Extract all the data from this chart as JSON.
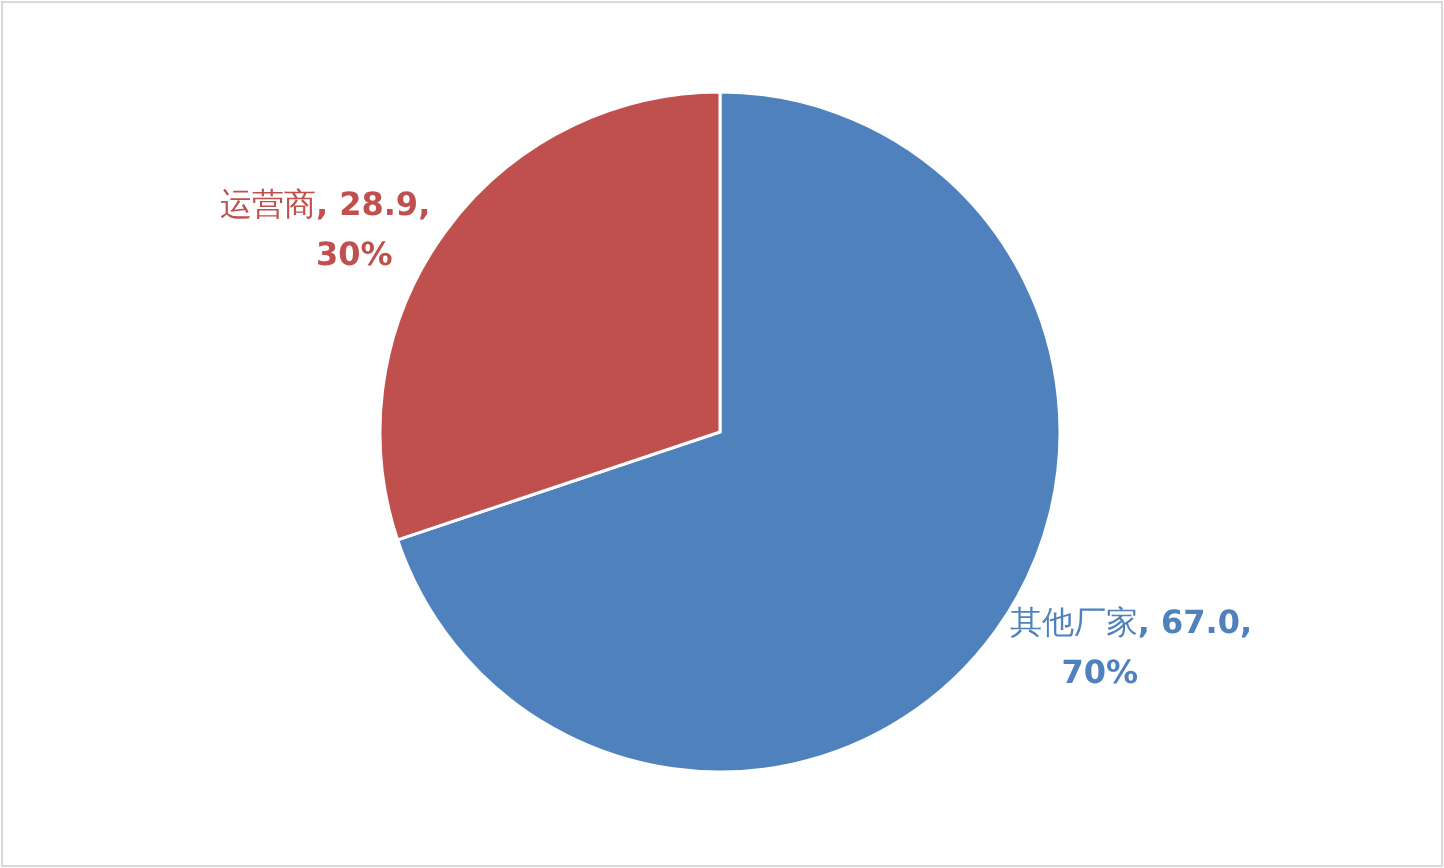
{
  "chart_data": {
    "type": "pie",
    "categories": [
      "其他厂家",
      "运营商"
    ],
    "values": [
      67.0,
      28.9
    ],
    "colors": [
      "#4f81bd",
      "#c0504d"
    ],
    "value_labels": [
      ", 67.0, 70%",
      ", 28.9, 30%"
    ]
  }
}
